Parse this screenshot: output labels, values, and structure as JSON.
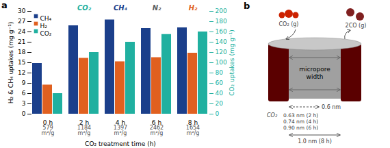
{
  "chart_data": [
    {
      "type": "bar",
      "panel_label": "a",
      "categories": [
        "0 h",
        "2 h",
        "4 h",
        "6 h",
        "8 h"
      ],
      "xlabel": "CO₂ treatment time (h)",
      "ylabel": "H₂ & CH₄ uptakes (mg g⁻¹)",
      "y2label": "CO₂ uptakes (mg g⁻¹)",
      "y2color": "#20b0a0",
      "series": [
        {
          "name": "CH₄",
          "color": "#1b3f8b",
          "values": [
            14.8,
            25.8,
            27.5,
            25.0,
            25.2
          ]
        },
        {
          "name": "H₂",
          "color": "#e06020",
          "values": [
            8.5,
            16.3,
            15.3,
            16.5,
            17.8
          ]
        },
        {
          "name": "CO₂",
          "color": "#20b0a0",
          "values": [
            40,
            120,
            140,
            155,
            160
          ],
          "axis": "y2"
        }
      ],
      "ylim": [
        0,
        30
      ],
      "yticks": [
        0,
        3,
        6,
        9,
        12,
        15,
        18,
        21,
        24,
        27,
        30
      ],
      "y2lim": [
        0,
        200
      ],
      "y2ticks": [
        0,
        20,
        40,
        60,
        80,
        100,
        120,
        140,
        160,
        180,
        200
      ],
      "grid": false,
      "legend": "upper left",
      "surface_areas": [
        {
          "text": "579\nm²/g",
          "category": "0 h",
          "color": "#505050"
        },
        {
          "text": "1184\nm²/g",
          "category": "2 h",
          "color": "#505050"
        },
        {
          "text": "1397\nm²/g",
          "category": "4 h",
          "color": "#505050"
        },
        {
          "text": "2462\nm²/g",
          "category": "6 h",
          "color": "#505050"
        },
        {
          "text": "1654\nm²/g",
          "category": "8 h",
          "color": "#505050"
        }
      ],
      "annotations": [
        {
          "text": "CO₂",
          "category": "2 h",
          "color": "#20b0a0"
        },
        {
          "text": "CH₄",
          "category": "4 h",
          "color": "#1b3f8b"
        },
        {
          "text": "N₂",
          "category": "6 h",
          "color": "#606060"
        },
        {
          "text": "H₂",
          "category": "8 h",
          "color": "#e06020"
        }
      ]
    },
    {
      "type": "diagram",
      "panel_label": "b",
      "annotations": [
        "micropore\nwidth",
        "0.6 nm",
        "CO₂",
        "0.63 nm (2 h)",
        "0.74 nm (4 h)",
        "0.90 nm (6 h)",
        "1.0 nm (8 h)",
        "CO₂ (g)",
        "2CO (g)"
      ]
    }
  ]
}
